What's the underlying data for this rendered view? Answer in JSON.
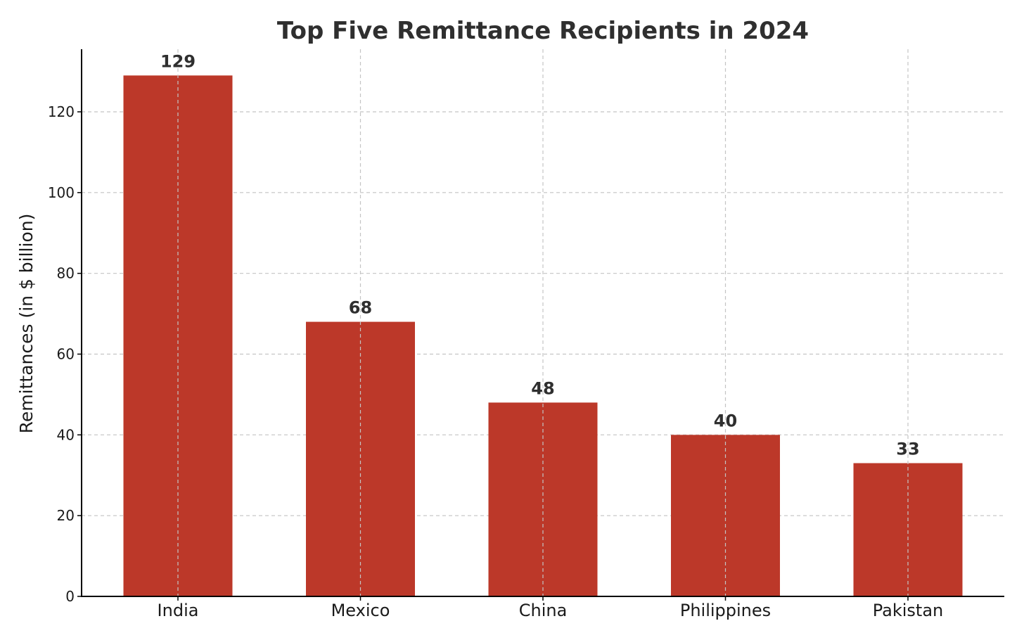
{
  "chart_data": {
    "type": "bar",
    "title": "Top Five Remittance Recipients in 2024",
    "xlabel": "",
    "ylabel": "Remittances (in $ billion)",
    "categories": [
      "India",
      "Mexico",
      "China",
      "Philippines",
      "Pakistan"
    ],
    "values": [
      129,
      68,
      48,
      40,
      33
    ],
    "data_labels": [
      "129",
      "68",
      "48",
      "40",
      "33"
    ],
    "y_ticks": [
      0,
      20,
      40,
      60,
      80,
      100,
      120
    ],
    "y_tick_labels": [
      "0",
      "20",
      "40",
      "60",
      "80",
      "100",
      "120"
    ],
    "ylim": [
      0,
      135.5
    ],
    "grid": true,
    "colors": {
      "bar": "#bc3829",
      "grid": "#c4c4c4",
      "text": "#2f2f2f"
    }
  }
}
